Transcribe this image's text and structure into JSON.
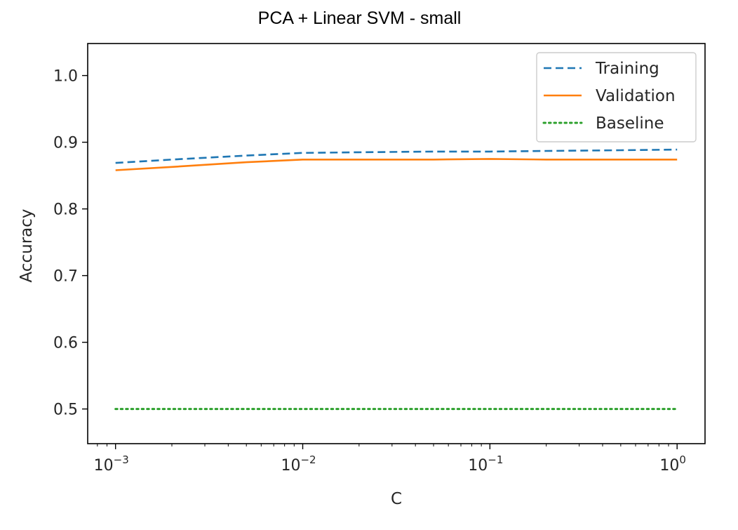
{
  "chart_data": {
    "type": "line",
    "title": "PCA + Linear SVM - small",
    "xlabel": "C",
    "ylabel": "Accuracy",
    "xscale": "log",
    "xlim": [
      0.00071,
      1.41
    ],
    "ylim": [
      0.448,
      1.048
    ],
    "xticks": [
      {
        "value": 0.001,
        "base": "10",
        "exp": "−3"
      },
      {
        "value": 0.01,
        "base": "10",
        "exp": "−2"
      },
      {
        "value": 0.1,
        "base": "10",
        "exp": "−1"
      },
      {
        "value": 1,
        "base": "10",
        "exp": "0"
      }
    ],
    "yticks": [
      {
        "value": 0.5,
        "label": "0.5"
      },
      {
        "value": 0.6,
        "label": "0.6"
      },
      {
        "value": 0.7,
        "label": "0.7"
      },
      {
        "value": 0.8,
        "label": "0.8"
      },
      {
        "value": 0.9,
        "label": "0.9"
      },
      {
        "value": 1.0,
        "label": "1.0"
      }
    ],
    "grid": false,
    "legend_position": "top-right",
    "x": [
      0.001,
      0.002,
      0.005,
      0.01,
      0.02,
      0.05,
      0.1,
      0.2,
      0.5,
      1
    ],
    "series": [
      {
        "name": "Training",
        "style": "dashed",
        "color": "#1f77b4",
        "values": [
          0.869,
          0.874,
          0.88,
          0.884,
          0.885,
          0.886,
          0.886,
          0.887,
          0.888,
          0.889
        ]
      },
      {
        "name": "Validation",
        "style": "solid",
        "color": "#ff7f0e",
        "values": [
          0.858,
          0.863,
          0.87,
          0.874,
          0.874,
          0.874,
          0.875,
          0.874,
          0.874,
          0.874
        ]
      },
      {
        "name": "Baseline",
        "style": "dotted",
        "color": "#2ca02c",
        "values": [
          0.5,
          0.5,
          0.5,
          0.5,
          0.5,
          0.5,
          0.5,
          0.5,
          0.5,
          0.5
        ]
      }
    ]
  }
}
